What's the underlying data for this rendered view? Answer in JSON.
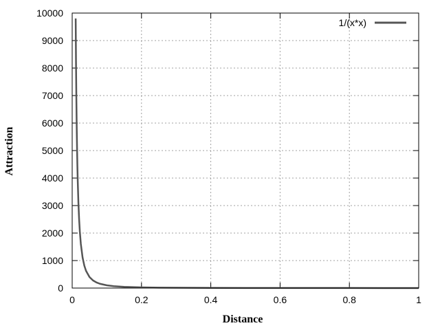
{
  "chart_data": {
    "type": "line",
    "xlabel": "Distance",
    "ylabel": "Attraction",
    "xlim": [
      0,
      1
    ],
    "ylim": [
      0,
      10000
    ],
    "x_ticks": [
      0,
      0.2,
      0.4,
      0.6,
      0.8,
      1
    ],
    "x_tick_labels": [
      "0",
      "0.2",
      "0.4",
      "0.6",
      "0.8",
      "1"
    ],
    "y_ticks": [
      0,
      1000,
      2000,
      3000,
      4000,
      5000,
      6000,
      7000,
      8000,
      9000,
      10000
    ],
    "y_tick_labels": [
      "0",
      "1000",
      "2000",
      "3000",
      "4000",
      "5000",
      "6000",
      "7000",
      "8000",
      "9000",
      "10000"
    ],
    "grid": true,
    "legend_position": "top-right",
    "series": [
      {
        "name": "1/(x*x)",
        "color": "#555555",
        "x": [
          0.0101,
          0.011,
          0.012,
          0.013,
          0.014,
          0.015,
          0.016,
          0.018,
          0.02,
          0.022,
          0.025,
          0.03,
          0.035,
          0.04,
          0.05,
          0.06,
          0.07,
          0.08,
          0.1,
          0.12,
          0.15,
          0.2,
          0.25,
          0.3,
          0.4,
          0.5,
          0.6,
          0.7,
          0.8,
          0.9,
          1.0
        ],
        "y": [
          9803,
          8264,
          6944,
          5917,
          5102,
          4444,
          3906,
          3086,
          2500,
          2066,
          1600,
          1111,
          816,
          625,
          400,
          278,
          204,
          156,
          100,
          69,
          44,
          25,
          16,
          11,
          6,
          4,
          3,
          2,
          2,
          1,
          1
        ]
      }
    ]
  }
}
